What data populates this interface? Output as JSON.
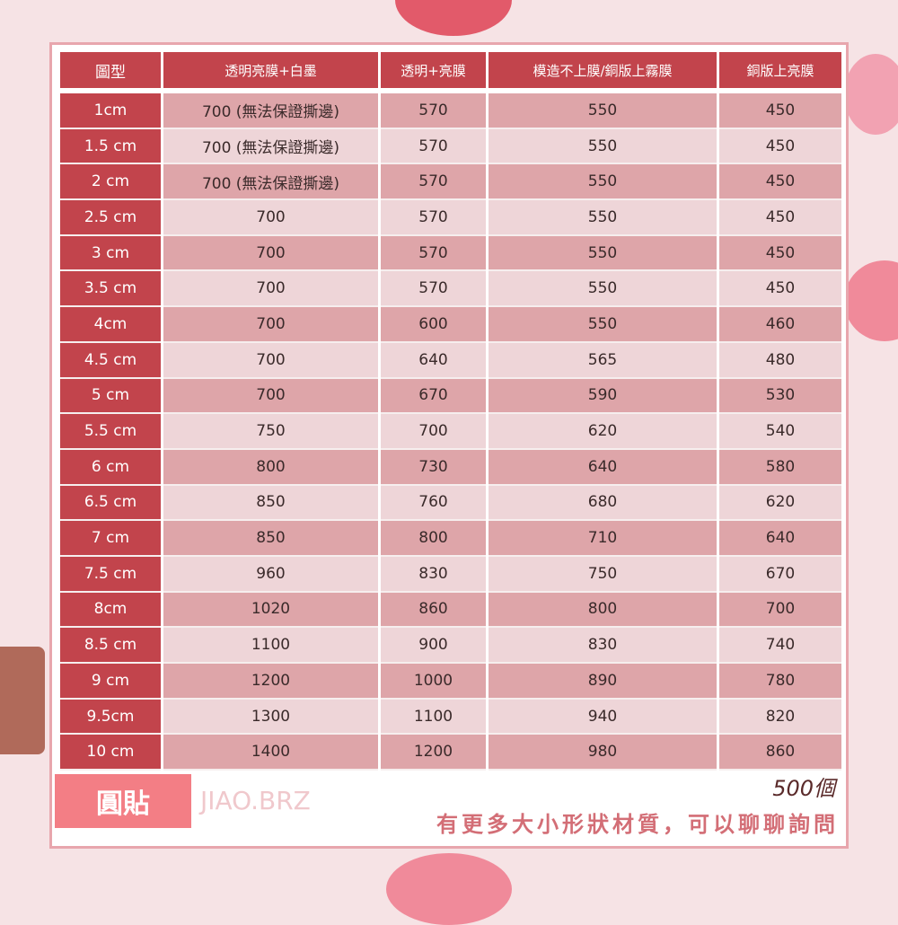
{
  "colors": {
    "header": "#c2444c",
    "row_dark": "#dea5a9",
    "row_light": "#eed5d8",
    "tag": "#f37e85"
  },
  "table": {
    "headers": [
      "圖型",
      "透明亮膜+白墨",
      "透明+亮膜",
      "模造不上膜/銅版上霧膜",
      "銅版上亮膜"
    ],
    "rows": [
      [
        "1cm",
        "700 (無法保證撕邊)",
        "570",
        "550",
        "450"
      ],
      [
        "1.5 cm",
        "700 (無法保證撕邊)",
        "570",
        "550",
        "450"
      ],
      [
        "2 cm",
        "700 (無法保證撕邊)",
        "570",
        "550",
        "450"
      ],
      [
        "2.5 cm",
        "700",
        "570",
        "550",
        "450"
      ],
      [
        "3 cm",
        "700",
        "570",
        "550",
        "450"
      ],
      [
        "3.5 cm",
        "700",
        "570",
        "550",
        "450"
      ],
      [
        "4cm",
        "700",
        "600",
        "550",
        "460"
      ],
      [
        "4.5 cm",
        "700",
        "640",
        "565",
        "480"
      ],
      [
        "5 cm",
        "700",
        "670",
        "590",
        "530"
      ],
      [
        "5.5 cm",
        "750",
        "700",
        "620",
        "540"
      ],
      [
        "6 cm",
        "800",
        "730",
        "640",
        "580"
      ],
      [
        "6.5 cm",
        "850",
        "760",
        "680",
        "620"
      ],
      [
        "7 cm",
        "850",
        "800",
        "710",
        "640"
      ],
      [
        "7.5 cm",
        "960",
        "830",
        "750",
        "670"
      ],
      [
        "8cm",
        "1020",
        "860",
        "800",
        "700"
      ],
      [
        "8.5 cm",
        "1100",
        "900",
        "830",
        "740"
      ],
      [
        "9 cm",
        "1200",
        "1000",
        "890",
        "780"
      ],
      [
        "9.5cm",
        "1300",
        "1100",
        "940",
        "820"
      ],
      [
        "10 cm",
        "1400",
        "1200",
        "980",
        "860"
      ]
    ]
  },
  "footer": {
    "tag": "圓貼",
    "brand": "JIAO.BRZ",
    "quantity": "500個",
    "note": "有更多大小形狀材質，可以聊聊詢問"
  }
}
